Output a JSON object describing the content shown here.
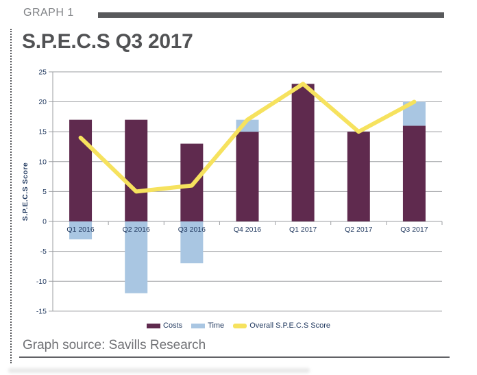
{
  "header": {
    "kicker": "GRAPH 1",
    "title": "S.P.E.C.S Q3 2017"
  },
  "chart_data": {
    "type": "bar",
    "categories": [
      "Q1 2016",
      "Q2 2016",
      "Q3 2016",
      "Q4 2016",
      "Q1 2017",
      "Q2 2017",
      "Q3 2017"
    ],
    "series": [
      {
        "name": "Costs",
        "type": "bar",
        "color": "#5f2a4e",
        "values": [
          17,
          17,
          13,
          15,
          23,
          15,
          16
        ]
      },
      {
        "name": "Time",
        "type": "bar",
        "color": "#a9c6e2",
        "values": [
          -3,
          -12,
          -7,
          2,
          0,
          0,
          4
        ],
        "stacking": "stacked-above-costs-when-positive-below-zero-when-negative"
      },
      {
        "name": "Overall S.P.E.C.S Score",
        "type": "line",
        "color": "#f6e25e",
        "values": [
          14,
          5,
          6,
          17,
          23,
          15,
          20
        ]
      }
    ],
    "ylabel": "S.P.E.C.S Score",
    "ylim": [
      -15,
      25
    ],
    "yticks": [
      25,
      20,
      15,
      10,
      5,
      0,
      -5,
      -10,
      -15
    ],
    "grid": true,
    "legend_position": "bottom"
  },
  "footer": {
    "source": "Graph source: Savills Research"
  },
  "colors": {
    "costs": "#5f2a4e",
    "time": "#a9c6e2",
    "score_line": "#f6e25e",
    "grid": "#9b9da1",
    "axis_text": "#21395f",
    "header_bar": "#58595b",
    "kicker_text": "#7e8084",
    "title_text": "#515254",
    "source_text": "#707175",
    "footer_rule": "#616266"
  }
}
